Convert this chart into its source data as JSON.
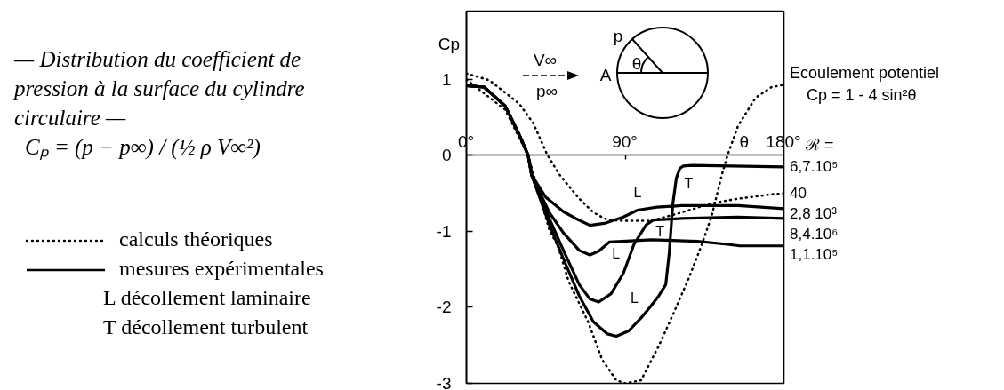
{
  "chart_data": {
    "type": "line",
    "title": "— Distribution du coefficient de pression à la surface du cylindre circulaire —",
    "subtitle": "Cₚ = (p − p∞) / (½ ρ V∞²)",
    "xlabel": "θ",
    "ylabel": "Cp",
    "xlim": [
      0,
      180
    ],
    "ylim": [
      -3,
      1.9
    ],
    "xticks": [
      {
        "value": 0,
        "label": "0°"
      },
      {
        "value": 90,
        "label": "90°"
      },
      {
        "value": 180,
        "label": "180°"
      }
    ],
    "yticks": [
      1,
      0,
      -1,
      -2,
      -3
    ],
    "line_style": "solid",
    "series": [
      {
        "name": "Ecoulement potentiel",
        "color": "#000000",
        "line_style": "dotted",
        "x": [
          0,
          22,
          35,
          47,
          52,
          58,
          69,
          77,
          85,
          90,
          99,
          109,
          117,
          126,
          133,
          139,
          145,
          148,
          154,
          164,
          173,
          180
        ],
        "values": [
          1.0,
          0.6,
          0,
          -0.98,
          -1.2,
          -1.66,
          -2.19,
          -2.69,
          -2.96,
          -3,
          -2.96,
          -2.51,
          -2.1,
          -1.62,
          -1.2,
          -0.8,
          -0.24,
          0,
          0.39,
          0.76,
          0.9,
          0.93
        ]
      },
      {
        "name": "6,7.10⁵",
        "color": "#000000",
        "x": [
          0,
          10,
          22,
          30,
          35,
          37,
          47,
          55,
          64,
          72,
          80,
          85,
          92,
          99,
          104,
          109,
          113,
          115,
          117,
          119,
          121,
          123,
          128,
          180
        ],
        "values": [
          0.92,
          0.9,
          0.65,
          0.27,
          0,
          -0.26,
          -0.91,
          -1.36,
          -1.85,
          -2.19,
          -2.35,
          -2.38,
          -2.31,
          -2.14,
          -2.0,
          -1.85,
          -1.7,
          -1.28,
          -0.64,
          -0.3,
          -0.17,
          -0.14,
          -0.13,
          -0.15
        ]
      },
      {
        "name": "40",
        "color": "#000000",
        "line_style": "dotted",
        "x": [
          0,
          13,
          30,
          38,
          46,
          53,
          64,
          72,
          80,
          89,
          105,
          122,
          139,
          154,
          174,
          180
        ],
        "values": [
          1.08,
          0.99,
          0.68,
          0.42,
          0,
          -0.26,
          -0.57,
          -0.75,
          -0.85,
          -0.86,
          -0.86,
          -0.75,
          -0.63,
          -0.57,
          -0.51,
          -0.5
        ]
      },
      {
        "name": "2,8 10³",
        "color": "#000000",
        "x": [
          0,
          10,
          22,
          30,
          35,
          37,
          45,
          55,
          62,
          70,
          79,
          89,
          97,
          108,
          122,
          154,
          180
        ],
        "values": [
          0.92,
          0.9,
          0.65,
          0.27,
          0,
          -0.26,
          -0.55,
          -0.74,
          -0.83,
          -0.92,
          -0.89,
          -0.81,
          -0.72,
          -0.68,
          -0.66,
          -0.66,
          -0.7
        ]
      },
      {
        "name": "8,4.10⁶",
        "color": "#000000",
        "x": [
          0,
          10,
          22,
          30,
          35,
          37,
          47,
          55,
          64,
          70,
          75,
          82,
          89,
          95,
          102,
          106,
          122,
          154,
          180
        ],
        "values": [
          0.92,
          0.9,
          0.65,
          0.27,
          0,
          -0.26,
          -0.83,
          -1.25,
          -1.7,
          -1.89,
          -1.93,
          -1.82,
          -1.55,
          -1.17,
          -0.91,
          -0.85,
          -0.83,
          -0.81,
          -0.83
        ]
      },
      {
        "name": "1,1.10⁵",
        "color": "#000000",
        "x": [
          0,
          10,
          22,
          30,
          35,
          37,
          47,
          55,
          64,
          70,
          75,
          81,
          105,
          131,
          148,
          155,
          180
        ],
        "values": [
          0.92,
          0.9,
          0.65,
          0.27,
          0,
          -0.26,
          -0.75,
          -1.02,
          -1.25,
          -1.31,
          -1.26,
          -1.14,
          -1.11,
          -1.13,
          -1.17,
          -1.19,
          -1.19
        ]
      }
    ],
    "annotations": [
      "calculs théoriques",
      "mesures expérimentales",
      "L décollement laminaire",
      "T décollement turbulent",
      "V∞",
      "p∞",
      "p",
      "A",
      "θ",
      "Cp = 1 - 4 sin²θ",
      "ℛ =",
      {
        "text": "L",
        "x": 97,
        "y": -0.72
      },
      {
        "text": "L",
        "x": 81,
        "y": -1.14
      },
      {
        "text": "T",
        "x": 106,
        "y": -0.85
      },
      {
        "text": "L",
        "x": 104,
        "y": -2.0
      },
      {
        "text": "T",
        "x": 121,
        "y": -0.17
      }
    ]
  }
}
